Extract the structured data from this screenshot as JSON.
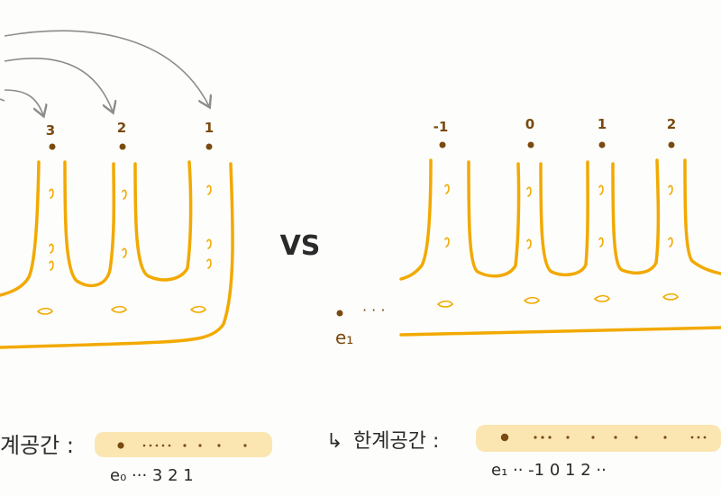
{
  "left_diagram": {
    "point_labels": [
      "3",
      "2",
      "1"
    ]
  },
  "right_diagram": {
    "point_labels": [
      "-1",
      "0",
      "1",
      "2"
    ],
    "basepoint_label": "e₁",
    "dots_text": "· · ·"
  },
  "versus_label": "VS",
  "bottom_left": {
    "caption": "계공간 :",
    "axis_labels": "e₀ ··· 3 2 1"
  },
  "bottom_right": {
    "arrow_glyph": "↳",
    "caption": "한계공간 :",
    "axis_labels": "e₁ ·· -1 0 1 2 ··"
  },
  "colors": {
    "orange": "#f2a900",
    "brown": "#7a4a10",
    "arrow_gray": "#8c8c8c",
    "ink": "#2a2a2a",
    "highlight": "#f9dd9a"
  }
}
